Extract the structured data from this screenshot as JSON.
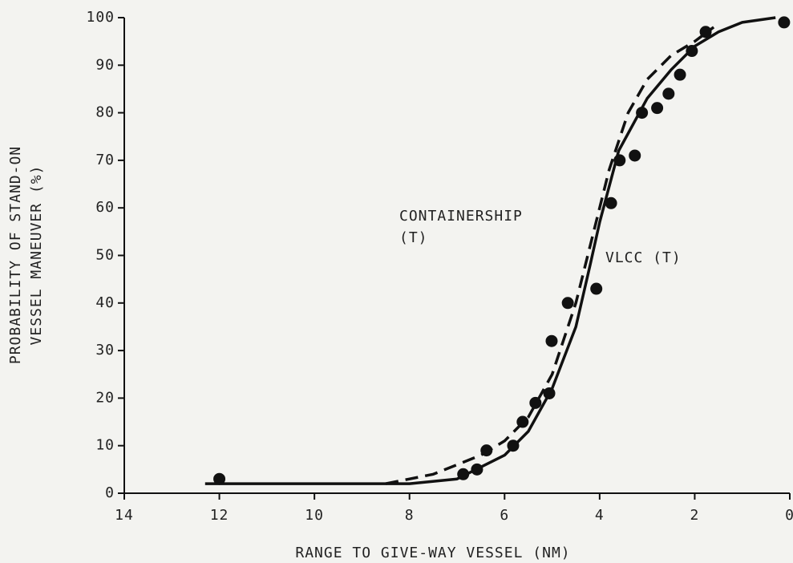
{
  "chart_data": {
    "type": "line",
    "xlabel": "RANGE TO GIVE-WAY VESSEL (NM)",
    "ylabel": [
      "PROBABILITY OF STAND-ON",
      "VESSEL MANEUVER (%)"
    ],
    "annotations": [
      "CONTAINERSHIP",
      "(T)",
      "VLCC (T)"
    ],
    "xlim": [
      14,
      0
    ],
    "ylim": [
      0,
      100
    ],
    "xticks": [
      14,
      12,
      10,
      8,
      6,
      4,
      2,
      0
    ],
    "yticks": [
      0,
      10,
      20,
      30,
      40,
      50,
      60,
      70,
      80,
      90,
      100
    ],
    "color": "#111111",
    "series": [
      {
        "style": "dashed",
        "x": [
          8.5,
          7.5,
          6.5,
          6,
          5.5,
          5,
          4.5,
          4.2,
          3.8,
          3.4,
          3,
          2.5,
          2,
          1.6
        ],
        "values": [
          2,
          4,
          8,
          11,
          16,
          25,
          40,
          52,
          68,
          80,
          87,
          92,
          95,
          98
        ]
      },
      {
        "style": "solid",
        "x": [
          12.3,
          10,
          8,
          7,
          6,
          5.5,
          5,
          4.5,
          4.2,
          4,
          3.6,
          3,
          2.5,
          2,
          1.5,
          1,
          0.3
        ],
        "values": [
          2,
          2,
          2,
          3,
          8,
          13,
          22,
          35,
          48,
          57,
          72,
          83,
          89,
          94,
          97,
          99,
          100
        ]
      },
      {
        "style": "points",
        "x": [
          12,
          6.87,
          6.58,
          6.38,
          5.82,
          5.62,
          5.35,
          5.06,
          5.01,
          4.67,
          4.07,
          3.76,
          3.58,
          3.26,
          3.11,
          2.79,
          2.55,
          2.31,
          2.06,
          1.77,
          0.12
        ],
        "values": [
          3,
          4,
          5,
          9,
          10,
          15,
          19,
          21,
          32,
          40,
          43,
          61,
          70,
          71,
          80,
          81,
          84,
          88,
          93,
          97,
          99
        ]
      }
    ]
  }
}
